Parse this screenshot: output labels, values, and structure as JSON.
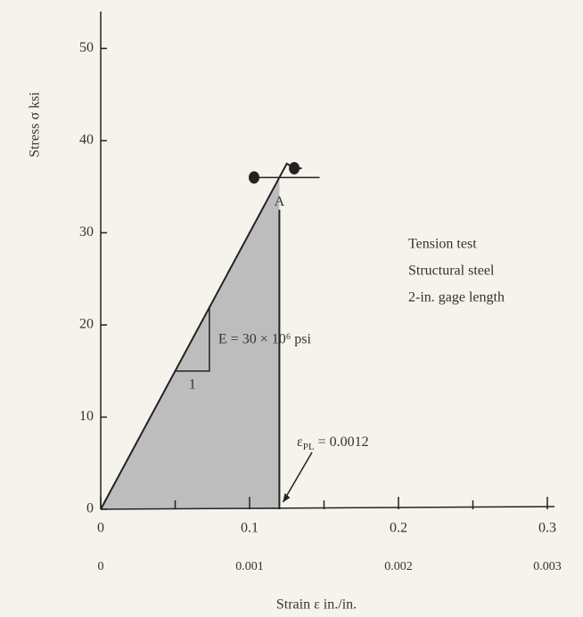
{
  "chart_data": {
    "type": "line",
    "ylabel": "Stress σ ksi",
    "xlabel": "Strain ε in./in.",
    "xlim": [
      0,
      0.3
    ],
    "xticks": [
      0,
      0.1,
      0.2,
      0.3
    ],
    "xminor_ticks": [
      0.05,
      0.15,
      0.25
    ],
    "x2lim": [
      0,
      0.003
    ],
    "x2ticks": [
      0,
      0.001,
      0.002,
      0.003
    ],
    "ylim": [
      0,
      54
    ],
    "yticks": [
      0,
      10,
      20,
      30,
      40,
      50
    ],
    "series": [
      {
        "x": [
          0,
          0.12,
          0.125,
          0.13,
          0.135
        ],
        "values": [
          0,
          36,
          37.5,
          37,
          37
        ],
        "color": "#222"
      }
    ],
    "fill_color": "#bdbdbd",
    "points": {
      "x": [
        0.103,
        0.13
      ],
      "values": [
        36,
        37
      ],
      "color": "#222"
    },
    "yield_line": {
      "x": [
        0.1,
        0.147
      ],
      "value": 36
    },
    "pl_line": {
      "x": 0.12,
      "values": [
        0,
        32.5
      ]
    },
    "slope_triangle": {
      "x": [
        0.05,
        0.073
      ],
      "values": [
        15,
        22
      ]
    },
    "point_label": "A",
    "slope_run_label": "1",
    "modulus_label": "E = 30 × 10⁶ psi",
    "pl_label": {
      "symbol": "ε",
      "subscript": "PL",
      "text": "= 0.0012"
    },
    "note": [
      "Tension test",
      "Structural steel",
      "2-in. gage length"
    ]
  }
}
